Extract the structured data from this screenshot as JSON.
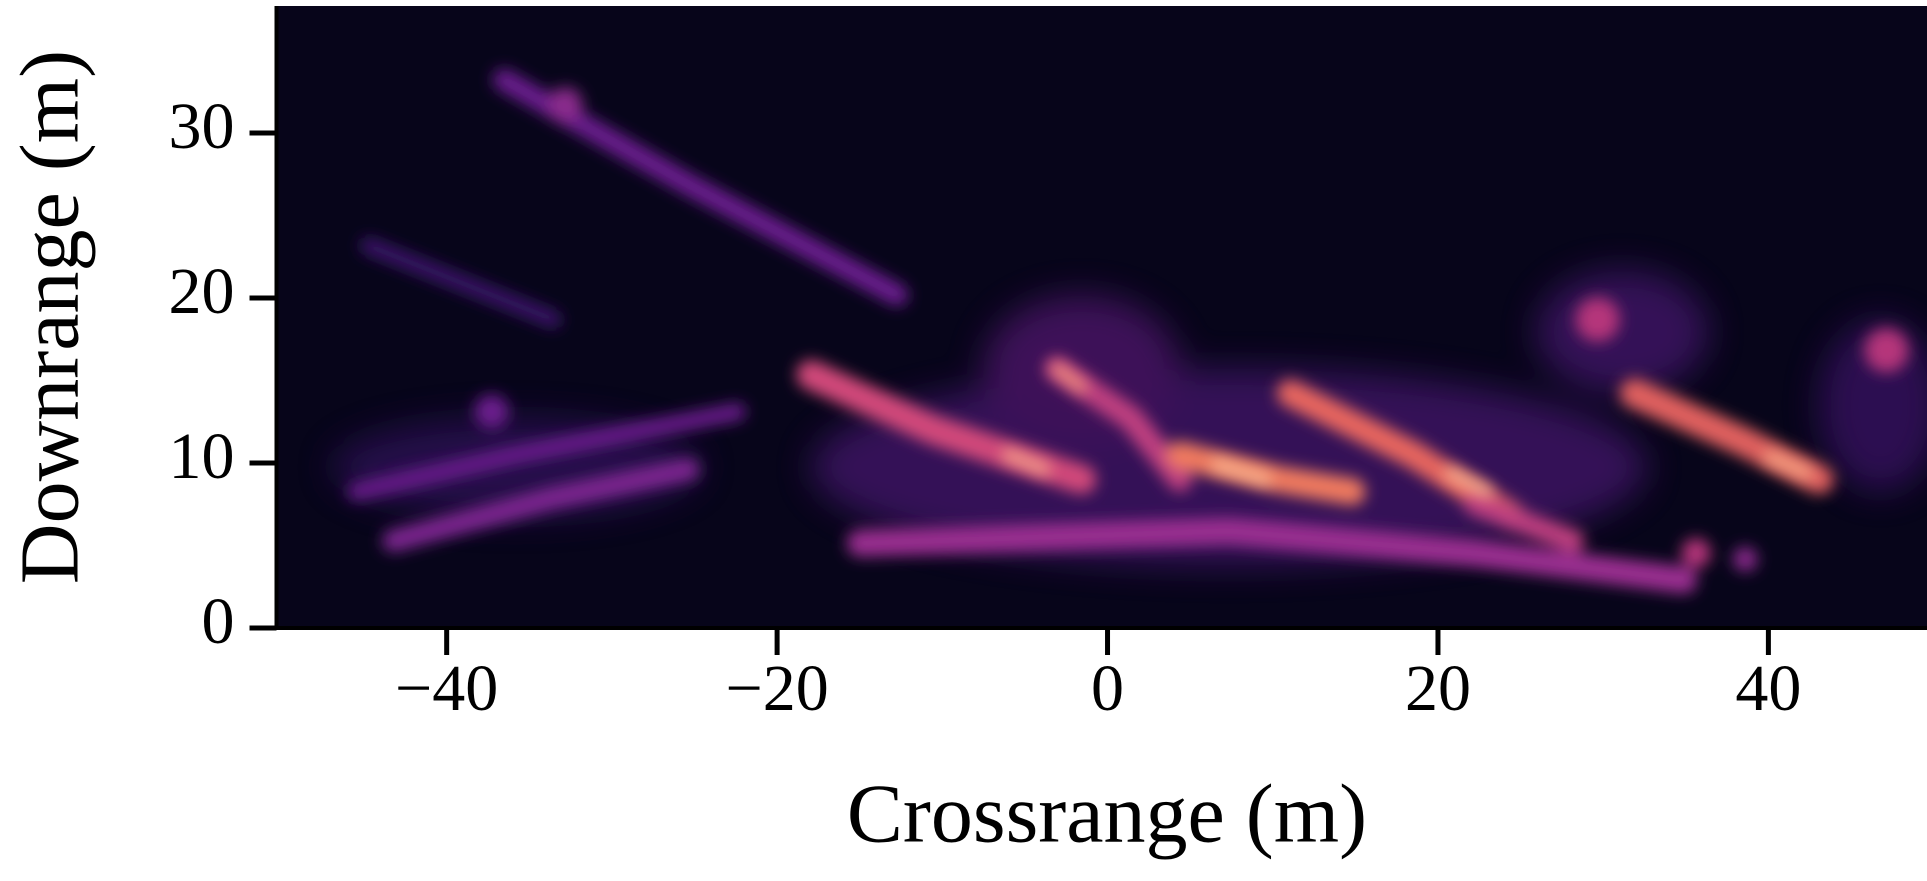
{
  "chart_data": {
    "type": "heatmap",
    "xlabel": "Crossrange (m)",
    "ylabel": "Downrange (m)",
    "xlim": [
      -50.3,
      49.6
    ],
    "ylim": [
      0,
      37.7
    ],
    "xticks": [
      {
        "value": -40,
        "label": "−40"
      },
      {
        "value": -20,
        "label": "−20"
      },
      0,
      20,
      40
    ],
    "yticks": [
      0,
      10,
      20,
      30
    ]
  }
}
